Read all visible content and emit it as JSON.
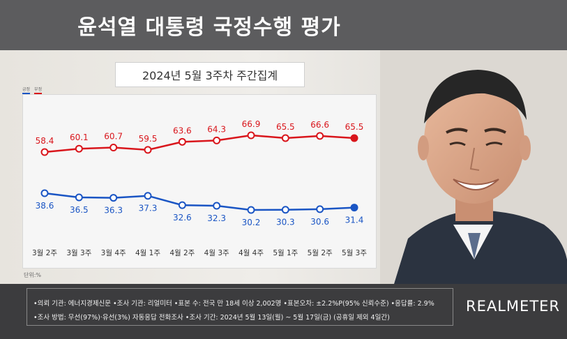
{
  "header": {
    "title": "윤석열 대통령 국정수행 평가"
  },
  "chart_data": {
    "type": "line",
    "subtitle": "2024년 5월 3주차 주간집계",
    "categories": [
      "3월 2주",
      "3월 3주",
      "3월 4주",
      "4월 1주",
      "4월 2주",
      "4월 3주",
      "4월 4주",
      "5월 1주",
      "5월 2주",
      "5월 3주"
    ],
    "series": [
      {
        "name": "부정",
        "color": "#d9161c",
        "values": [
          58.4,
          60.1,
          60.7,
          59.5,
          63.6,
          64.3,
          66.9,
          65.5,
          66.6,
          65.5
        ]
      },
      {
        "name": "긍정",
        "color": "#1a55c4",
        "values": [
          38.6,
          36.5,
          36.3,
          37.3,
          32.6,
          32.3,
          30.2,
          30.3,
          30.6,
          31.4
        ]
      }
    ],
    "unit_label": "단위:%",
    "grid": false,
    "legend_position": "top-left"
  },
  "legend": {
    "positive": "긍정",
    "negative": "부정",
    "positive_color": "#1a55c4",
    "negative_color": "#d9161c"
  },
  "footer": {
    "line1": "•의뢰 기관: 에너지경제신문 •조사 기관: 리얼미터 •표본 수: 전국 만 18세 이상 2,002명 •표본오차: ±2.2%P(95% 신뢰수준) •응답률: 2.9%",
    "line2": "•조사 방법: 무선(97%)·유선(3%) 자동응답 전화조사 •조사 기간: 2024년 5월 13일(월) ~ 5월 17일(금) (공휴일 제외 4일간)",
    "brand": "REALMETER"
  }
}
